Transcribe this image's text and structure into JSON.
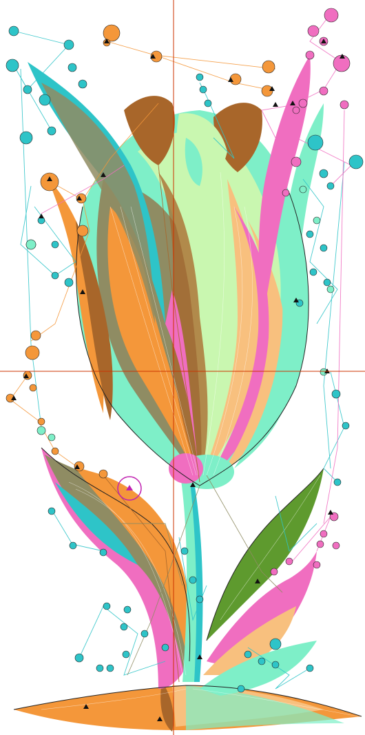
{
  "colors": {
    "orange": "#F4973A",
    "brown": "#A8662A",
    "olive": "#8F8C63",
    "teal": "#2EC4C8",
    "mint": "#7EEFC8",
    "lightgreen": "#C9F7B0",
    "pink": "#F06EC0",
    "peach": "#F8C07E",
    "darkgreen": "#5E9A2E",
    "crosshair": "#CC3300",
    "selection": "#C020B0"
  },
  "icons": {
    "needle_marker": "triangle-icon",
    "selection_marker": "circle-selection-icon",
    "crosshair": "crosshair-icon"
  }
}
